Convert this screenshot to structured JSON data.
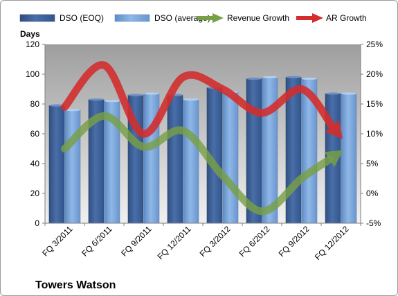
{
  "chart_data": {
    "type": "bar",
    "title": "Towers Watson",
    "categories": [
      "FQ 3/2011",
      "FQ 6/2011",
      "FQ 9/2011",
      "FQ 12/2011",
      "FQ 3/2012",
      "FQ 6/2012",
      "FQ 9/2012",
      "FQ 12/2012"
    ],
    "ylabel": "Days",
    "ylim": [
      0,
      120
    ],
    "y_ticks": [
      "0",
      "20",
      "40",
      "60",
      "80",
      "100",
      "120"
    ],
    "y2lim": [
      -5,
      25
    ],
    "y2_ticks": [
      "-5%",
      "0%",
      "5%",
      "10%",
      "15%",
      "20%",
      "25%"
    ],
    "grid": false,
    "legend_position": "top",
    "series": [
      {
        "name": "DSO (EOQ)",
        "type": "bar",
        "axis": "left",
        "color": "#4a6ea8",
        "values": [
          79,
          83,
          86,
          86,
          91,
          97,
          98,
          87
        ]
      },
      {
        "name": "DSO (average)",
        "type": "bar",
        "axis": "left",
        "color": "#89b3e6",
        "values": [
          76,
          82,
          87,
          83,
          88,
          98,
          97,
          87
        ]
      },
      {
        "name": "Revenue Growth",
        "type": "line",
        "axis": "right",
        "color": "#77a045",
        "values": [
          7.5,
          13,
          7.8,
          10.5,
          3,
          -3,
          2.5,
          7
        ]
      },
      {
        "name": "AR Growth",
        "type": "line",
        "axis": "right",
        "color": "#d32d2d",
        "values": [
          14.5,
          21.5,
          10,
          19.5,
          17.5,
          13.5,
          17.5,
          9.5
        ]
      }
    ]
  }
}
